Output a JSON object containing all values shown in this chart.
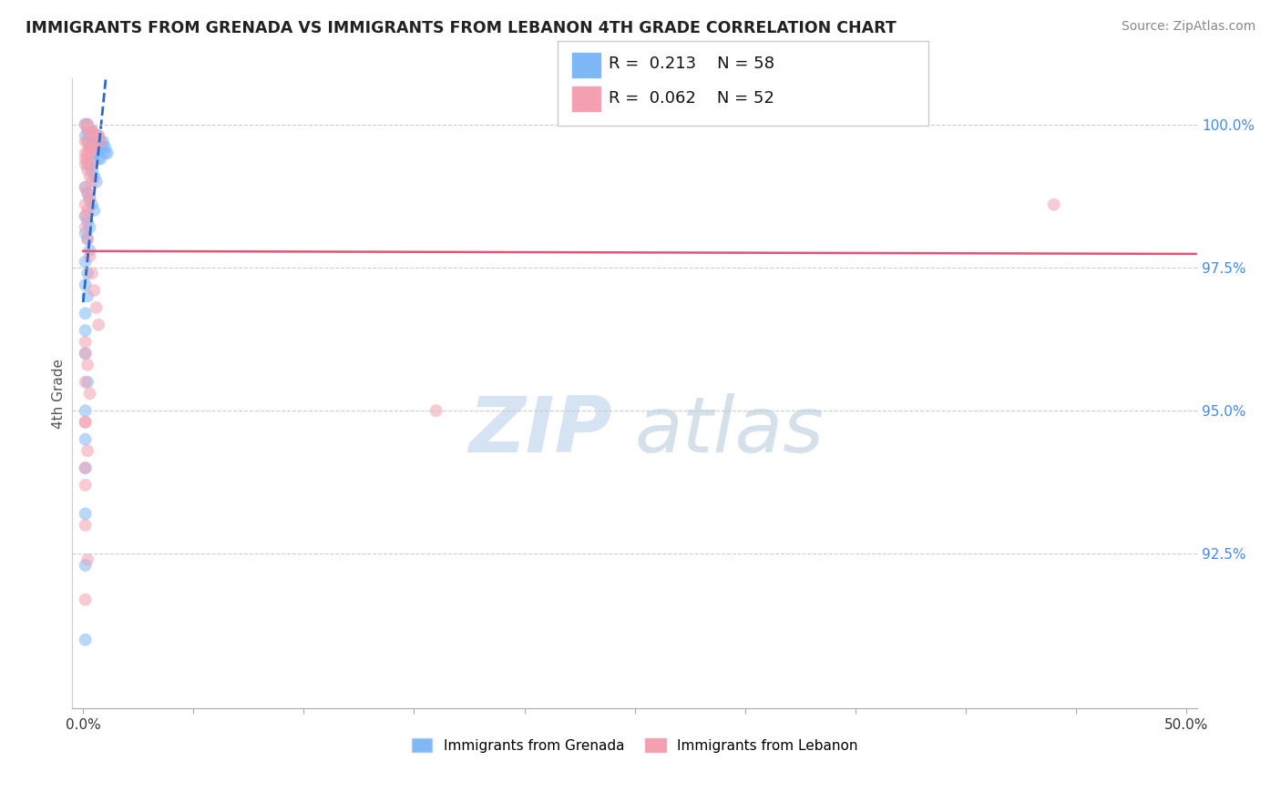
{
  "title": "IMMIGRANTS FROM GRENADA VS IMMIGRANTS FROM LEBANON 4TH GRADE CORRELATION CHART",
  "source": "Source: ZipAtlas.com",
  "xlabel_grenada": "Immigrants from Grenada",
  "xlabel_lebanon": "Immigrants from Lebanon",
  "ylabel": "4th Grade",
  "xlim": [
    -0.005,
    0.505
  ],
  "ylim": [
    0.898,
    1.008
  ],
  "xtick_positions": [
    0.0,
    0.05,
    0.1,
    0.15,
    0.2,
    0.25,
    0.3,
    0.35,
    0.4,
    0.45,
    0.5
  ],
  "xtick_labels_show": [
    "0.0%",
    "",
    "",
    "",
    "",
    "",
    "",
    "",
    "",
    "",
    "50.0%"
  ],
  "yticks": [
    0.925,
    0.95,
    0.975,
    1.0
  ],
  "ytick_labels": [
    "92.5%",
    "95.0%",
    "97.5%",
    "100.0%"
  ],
  "R_grenada": 0.213,
  "N_grenada": 58,
  "R_lebanon": 0.062,
  "N_lebanon": 52,
  "color_grenada": "#7eb8f7",
  "color_lebanon": "#f4a0b0",
  "trendline_grenada_color": "#3366cc",
  "trendline_lebanon_color": "#e05575",
  "scatter_alpha": 0.55,
  "marker_size": 100,
  "grenada_x": [
    0.001,
    0.002,
    0.002,
    0.003,
    0.003,
    0.004,
    0.004,
    0.005,
    0.005,
    0.006,
    0.006,
    0.007,
    0.007,
    0.008,
    0.008,
    0.009,
    0.009,
    0.01,
    0.01,
    0.011,
    0.001,
    0.002,
    0.003,
    0.004,
    0.005,
    0.006,
    0.007,
    0.008,
    0.002,
    0.003,
    0.004,
    0.005,
    0.006,
    0.001,
    0.002,
    0.003,
    0.004,
    0.005,
    0.001,
    0.002,
    0.003,
    0.001,
    0.002,
    0.003,
    0.001,
    0.002,
    0.001,
    0.002,
    0.001,
    0.001,
    0.001,
    0.002,
    0.001,
    0.001,
    0.001,
    0.001,
    0.001,
    0.001
  ],
  "grenada_y": [
    1.0,
    1.0,
    0.999,
    0.999,
    0.998,
    0.998,
    0.999,
    0.998,
    0.997,
    0.998,
    0.997,
    0.997,
    0.998,
    0.997,
    0.996,
    0.997,
    0.996,
    0.996,
    0.995,
    0.995,
    0.998,
    0.997,
    0.996,
    0.996,
    0.995,
    0.995,
    0.994,
    0.994,
    0.993,
    0.993,
    0.992,
    0.991,
    0.99,
    0.989,
    0.988,
    0.987,
    0.986,
    0.985,
    0.984,
    0.983,
    0.982,
    0.981,
    0.98,
    0.978,
    0.976,
    0.974,
    0.972,
    0.97,
    0.967,
    0.964,
    0.96,
    0.955,
    0.95,
    0.945,
    0.94,
    0.932,
    0.923,
    0.91
  ],
  "lebanon_x": [
    0.001,
    0.002,
    0.002,
    0.003,
    0.004,
    0.005,
    0.006,
    0.007,
    0.008,
    0.001,
    0.002,
    0.003,
    0.004,
    0.005,
    0.001,
    0.002,
    0.003,
    0.001,
    0.002,
    0.003,
    0.001,
    0.002,
    0.003,
    0.004,
    0.001,
    0.002,
    0.003,
    0.001,
    0.002,
    0.001,
    0.44,
    0.001,
    0.002,
    0.003,
    0.004,
    0.005,
    0.006,
    0.007,
    0.001,
    0.002,
    0.003,
    0.001,
    0.002,
    0.001,
    0.16,
    0.001,
    0.002,
    0.001,
    0.001,
    0.001,
    0.001,
    0.001
  ],
  "lebanon_y": [
    1.0,
    1.0,
    0.999,
    0.999,
    0.999,
    0.998,
    0.998,
    0.998,
    0.997,
    0.997,
    0.997,
    0.996,
    0.996,
    0.996,
    0.995,
    0.995,
    0.995,
    0.994,
    0.994,
    0.993,
    0.993,
    0.992,
    0.991,
    0.99,
    0.989,
    0.988,
    0.987,
    0.986,
    0.985,
    0.984,
    0.986,
    0.982,
    0.98,
    0.977,
    0.974,
    0.971,
    0.968,
    0.965,
    0.962,
    0.958,
    0.953,
    0.948,
    0.943,
    0.937,
    0.95,
    0.93,
    0.924,
    0.917,
    0.96,
    0.955,
    0.948,
    0.94
  ],
  "watermark_zip": "ZIP",
  "watermark_atlas": "atlas",
  "background_color": "#ffffff",
  "grid_color": "#cccccc"
}
